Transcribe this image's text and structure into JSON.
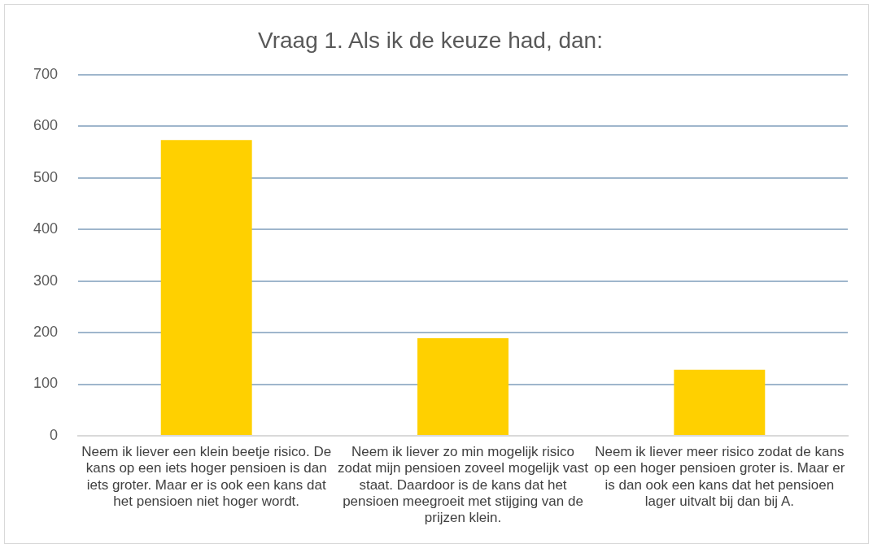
{
  "chart_data": {
    "type": "bar",
    "title": "Vraag 1. Als ik de keuze had, dan:",
    "categories": [
      "Neem ik liever een klein beetje risico. De kans op een iets hoger pensioen is dan iets groter. Maar er is ook een kans dat het pensioen niet hoger wordt.",
      "Neem ik liever zo min mogelijk risico zodat mijn pensioen zoveel mogelijk vast staat. Daardoor is de kans dat het pensioen meegroeit met stijging van de prijzen klein.",
      "Neem ik liever meer risico zodat de kans op een hoger pensioen groter is. Maar er is dan ook een kans dat het pensioen lager uitvalt bij dan bij A."
    ],
    "values": [
      573,
      189,
      128
    ],
    "color": "#ffd000",
    "ylim": [
      0,
      700
    ],
    "yticks": [
      0,
      100,
      200,
      300,
      400,
      500,
      600,
      700
    ],
    "grid": "y"
  }
}
